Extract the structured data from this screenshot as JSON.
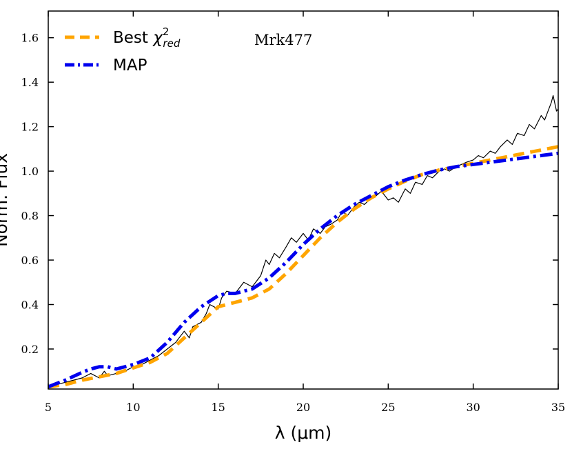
{
  "chart_data": {
    "type": "line",
    "title": "",
    "annotation": "Mrk477",
    "xlabel": "λ (μm)",
    "ylabel": "Norm. Flux",
    "xlim": [
      5,
      35
    ],
    "ylim": [
      0.02,
      1.72
    ],
    "xticks": [
      5,
      10,
      15,
      20,
      25,
      30,
      35
    ],
    "yticks": [
      0.2,
      0.4,
      0.6,
      0.8,
      1.0,
      1.2,
      1.4,
      1.6
    ],
    "xtick_labels": [
      "5",
      "10",
      "15",
      "20",
      "25",
      "30",
      "35"
    ],
    "ytick_labels": [
      "0.2",
      "0.4",
      "0.6",
      "0.8",
      "1.0",
      "1.2",
      "1.4",
      "1.6"
    ],
    "legend": {
      "placement": "top-left",
      "entries": [
        {
          "label_main": "Best ",
          "label_chi": "χ",
          "label_sup": "2",
          "label_sub": "red",
          "series": "best_chi2"
        },
        {
          "label_main": "MAP",
          "series": "map"
        }
      ]
    },
    "series": [
      {
        "name": "observed",
        "color": "#000000",
        "style": "solid",
        "x": [
          5.0,
          5.5,
          6.0,
          6.5,
          7.0,
          7.5,
          8.0,
          8.3,
          8.5,
          9.0,
          9.5,
          10.0,
          10.5,
          11.0,
          11.5,
          12.0,
          12.5,
          13.0,
          13.3,
          13.5,
          14.0,
          14.3,
          14.5,
          15.0,
          15.2,
          15.5,
          16.0,
          16.5,
          17.0,
          17.5,
          17.8,
          18.0,
          18.3,
          18.6,
          19.0,
          19.3,
          19.6,
          20.0,
          20.3,
          20.6,
          21.0,
          21.3,
          21.6,
          22.0,
          22.3,
          22.6,
          23.0,
          23.3,
          23.6,
          24.0,
          24.3,
          24.6,
          25.0,
          25.3,
          25.6,
          26.0,
          26.3,
          26.6,
          27.0,
          27.3,
          27.6,
          28.0,
          28.3,
          28.6,
          29.0,
          29.3,
          29.6,
          30.0,
          30.3,
          30.6,
          31.0,
          31.3,
          31.6,
          32.0,
          32.3,
          32.6,
          33.0,
          33.3,
          33.6,
          34.0,
          34.2,
          34.4,
          34.6,
          34.7,
          34.9,
          35.0
        ],
        "y": [
          0.03,
          0.04,
          0.05,
          0.06,
          0.07,
          0.09,
          0.07,
          0.1,
          0.08,
          0.09,
          0.1,
          0.12,
          0.13,
          0.15,
          0.17,
          0.2,
          0.23,
          0.28,
          0.25,
          0.3,
          0.32,
          0.36,
          0.4,
          0.38,
          0.43,
          0.46,
          0.45,
          0.5,
          0.48,
          0.53,
          0.6,
          0.58,
          0.63,
          0.61,
          0.66,
          0.7,
          0.68,
          0.72,
          0.69,
          0.74,
          0.72,
          0.75,
          0.76,
          0.78,
          0.82,
          0.8,
          0.84,
          0.86,
          0.85,
          0.88,
          0.89,
          0.91,
          0.87,
          0.88,
          0.86,
          0.92,
          0.9,
          0.95,
          0.94,
          0.98,
          0.97,
          1.0,
          1.01,
          1.0,
          1.02,
          1.03,
          1.04,
          1.05,
          1.07,
          1.06,
          1.09,
          1.08,
          1.11,
          1.14,
          1.12,
          1.17,
          1.16,
          1.21,
          1.19,
          1.25,
          1.23,
          1.27,
          1.31,
          1.34,
          1.27,
          1.28
        ]
      },
      {
        "name": "best_chi2",
        "color": "#FFA500",
        "style": "dashed",
        "x": [
          5,
          6,
          7,
          8,
          9,
          10,
          11,
          12,
          13,
          14,
          15,
          16,
          17,
          18,
          19,
          20,
          21,
          22,
          23,
          24,
          25,
          26,
          27,
          28,
          29,
          30,
          31,
          32,
          33,
          34,
          35
        ],
        "y": [
          0.03,
          0.04,
          0.06,
          0.075,
          0.09,
          0.115,
          0.14,
          0.18,
          0.25,
          0.32,
          0.39,
          0.41,
          0.43,
          0.47,
          0.54,
          0.62,
          0.7,
          0.77,
          0.83,
          0.88,
          0.92,
          0.955,
          0.985,
          1.005,
          1.02,
          1.035,
          1.05,
          1.065,
          1.08,
          1.095,
          1.11
        ]
      },
      {
        "name": "map",
        "color": "#0000EE",
        "style": "dashdot",
        "x": [
          5,
          6,
          7,
          7.5,
          8,
          8.5,
          9,
          9.5,
          10,
          11,
          12,
          13,
          14,
          15,
          15.5,
          16,
          17,
          18,
          19,
          20,
          21,
          22,
          23,
          24,
          25,
          26,
          27,
          28,
          29,
          30,
          31,
          32,
          33,
          34,
          35
        ],
        "y": [
          0.03,
          0.06,
          0.095,
          0.11,
          0.12,
          0.12,
          0.11,
          0.12,
          0.13,
          0.16,
          0.23,
          0.32,
          0.39,
          0.44,
          0.45,
          0.45,
          0.47,
          0.52,
          0.59,
          0.67,
          0.74,
          0.8,
          0.85,
          0.89,
          0.93,
          0.96,
          0.985,
          1.005,
          1.02,
          1.03,
          1.04,
          1.05,
          1.06,
          1.07,
          1.08
        ]
      }
    ]
  }
}
